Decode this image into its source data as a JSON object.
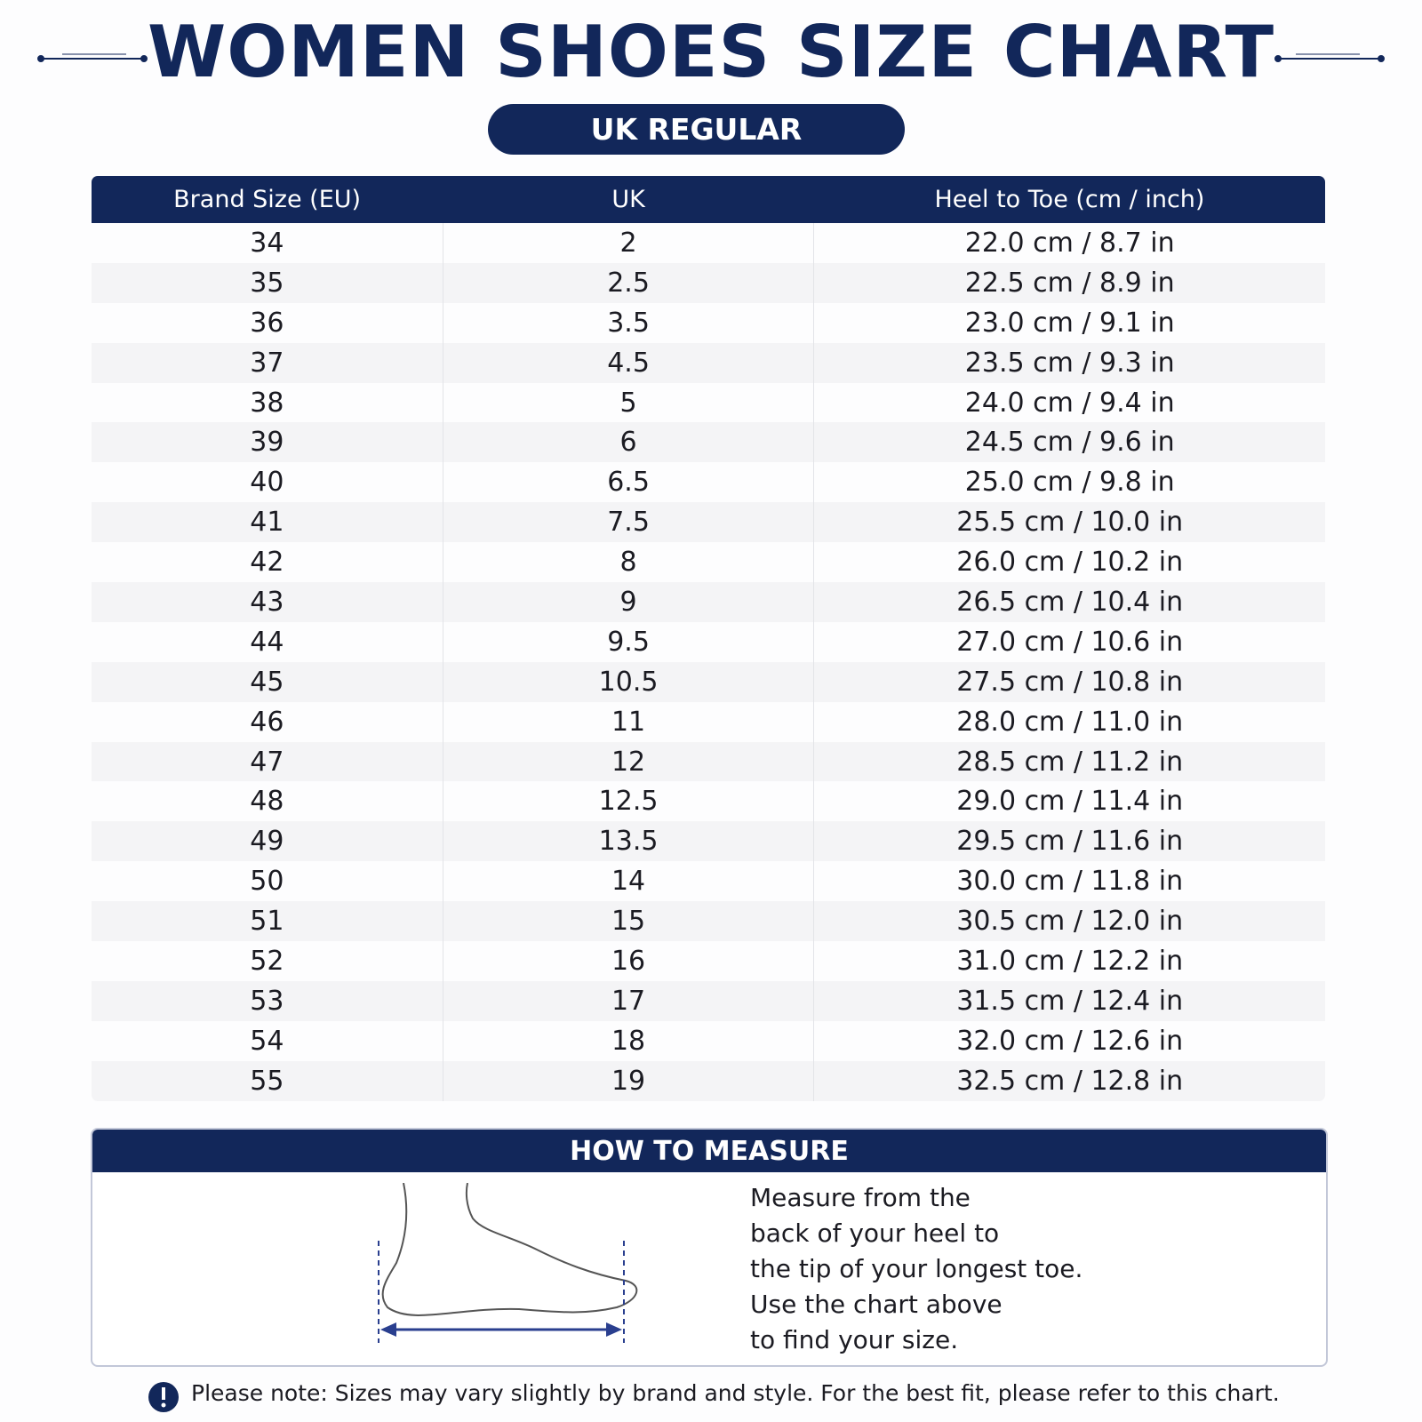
{
  "header": {
    "title": "WOMEN SHOES SIZE CHART",
    "subtitle": "UK REGULAR"
  },
  "table": {
    "columns": [
      "Brand Size (EU)",
      "UK",
      "Heel to Toe (cm / inch)"
    ],
    "rows": [
      [
        "34",
        "2",
        "22.0 cm / 8.7 in"
      ],
      [
        "35",
        "2.5",
        "22.5 cm / 8.9 in"
      ],
      [
        "36",
        "3.5",
        "23.0 cm / 9.1 in"
      ],
      [
        "37",
        "4.5",
        "23.5 cm / 9.3 in"
      ],
      [
        "38",
        "5",
        "24.0 cm / 9.4 in"
      ],
      [
        "39",
        "6",
        "24.5 cm / 9.6 in"
      ],
      [
        "40",
        "6.5",
        "25.0 cm / 9.8 in"
      ],
      [
        "41",
        "7.5",
        "25.5 cm / 10.0 in"
      ],
      [
        "42",
        "8",
        "26.0 cm / 10.2 in"
      ],
      [
        "43",
        "9",
        "26.5 cm / 10.4 in"
      ],
      [
        "44",
        "9.5",
        "27.0 cm / 10.6 in"
      ],
      [
        "45",
        "10.5",
        "27.5 cm / 10.8 in"
      ],
      [
        "46",
        "11",
        "28.0 cm / 11.0 in"
      ],
      [
        "47",
        "12",
        "28.5 cm / 11.2 in"
      ],
      [
        "48",
        "12.5",
        "29.0 cm / 11.4 in"
      ],
      [
        "49",
        "13.5",
        "29.5 cm / 11.6 in"
      ],
      [
        "50",
        "14",
        "30.0 cm / 11.8 in"
      ],
      [
        "51",
        "15",
        "30.5 cm / 12.0 in"
      ],
      [
        "52",
        "16",
        "31.0 cm / 12.2 in"
      ],
      [
        "53",
        "17",
        "31.5 cm / 12.4 in"
      ],
      [
        "54",
        "18",
        "32.0 cm / 12.6 in"
      ],
      [
        "55",
        "19",
        "32.5 cm / 12.8 in"
      ]
    ]
  },
  "measure": {
    "title": "HOW TO MEASURE",
    "lines": [
      "Measure from the",
      "back of your heel to",
      "the tip of your longest toe.",
      "Use the chart above",
      "to find your size."
    ]
  },
  "note": "Please note: Sizes may vary slightly by brand and style. For the best fit, please refer to this chart."
}
